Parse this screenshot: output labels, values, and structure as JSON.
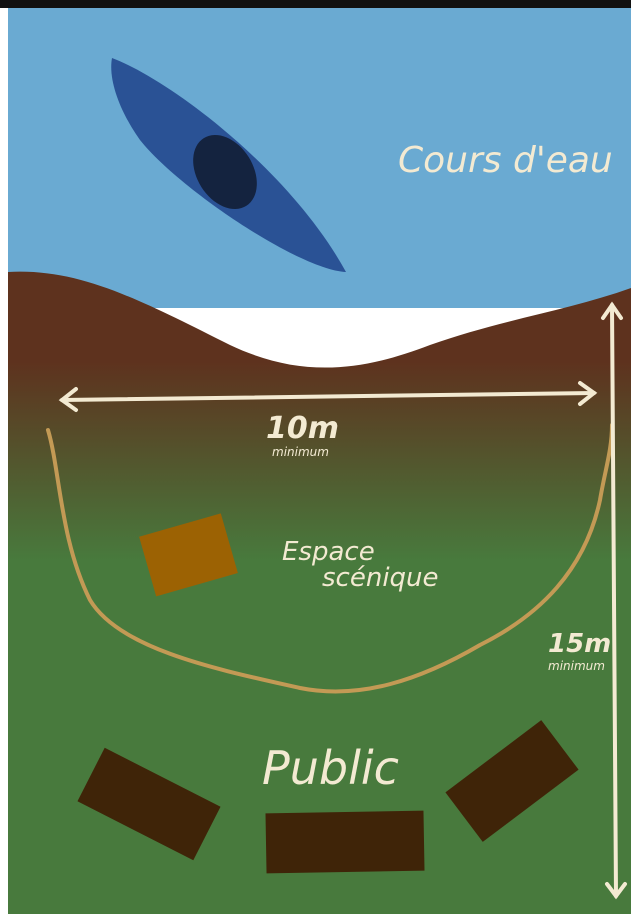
{
  "labels": {
    "water": "Cours d'eau",
    "width_value": "10m",
    "width_note": "minimum",
    "stage_line1": "Espace",
    "stage_line2": "scénique",
    "depth_value": "15m",
    "depth_note": "minimum",
    "audience": "Public"
  },
  "colors": {
    "water": "#6aaad2",
    "boat": "#2a5295",
    "boat_seat": "#14233f",
    "riverbank": "#5e321e",
    "grass": "#487a3d",
    "stage_outline": "#c39a55",
    "prop_box": "#9c6203",
    "bench": "#3f2408",
    "arrow": "#f3ead2"
  },
  "icons": {
    "boat": "kayak-icon",
    "bench": "bench-block"
  }
}
